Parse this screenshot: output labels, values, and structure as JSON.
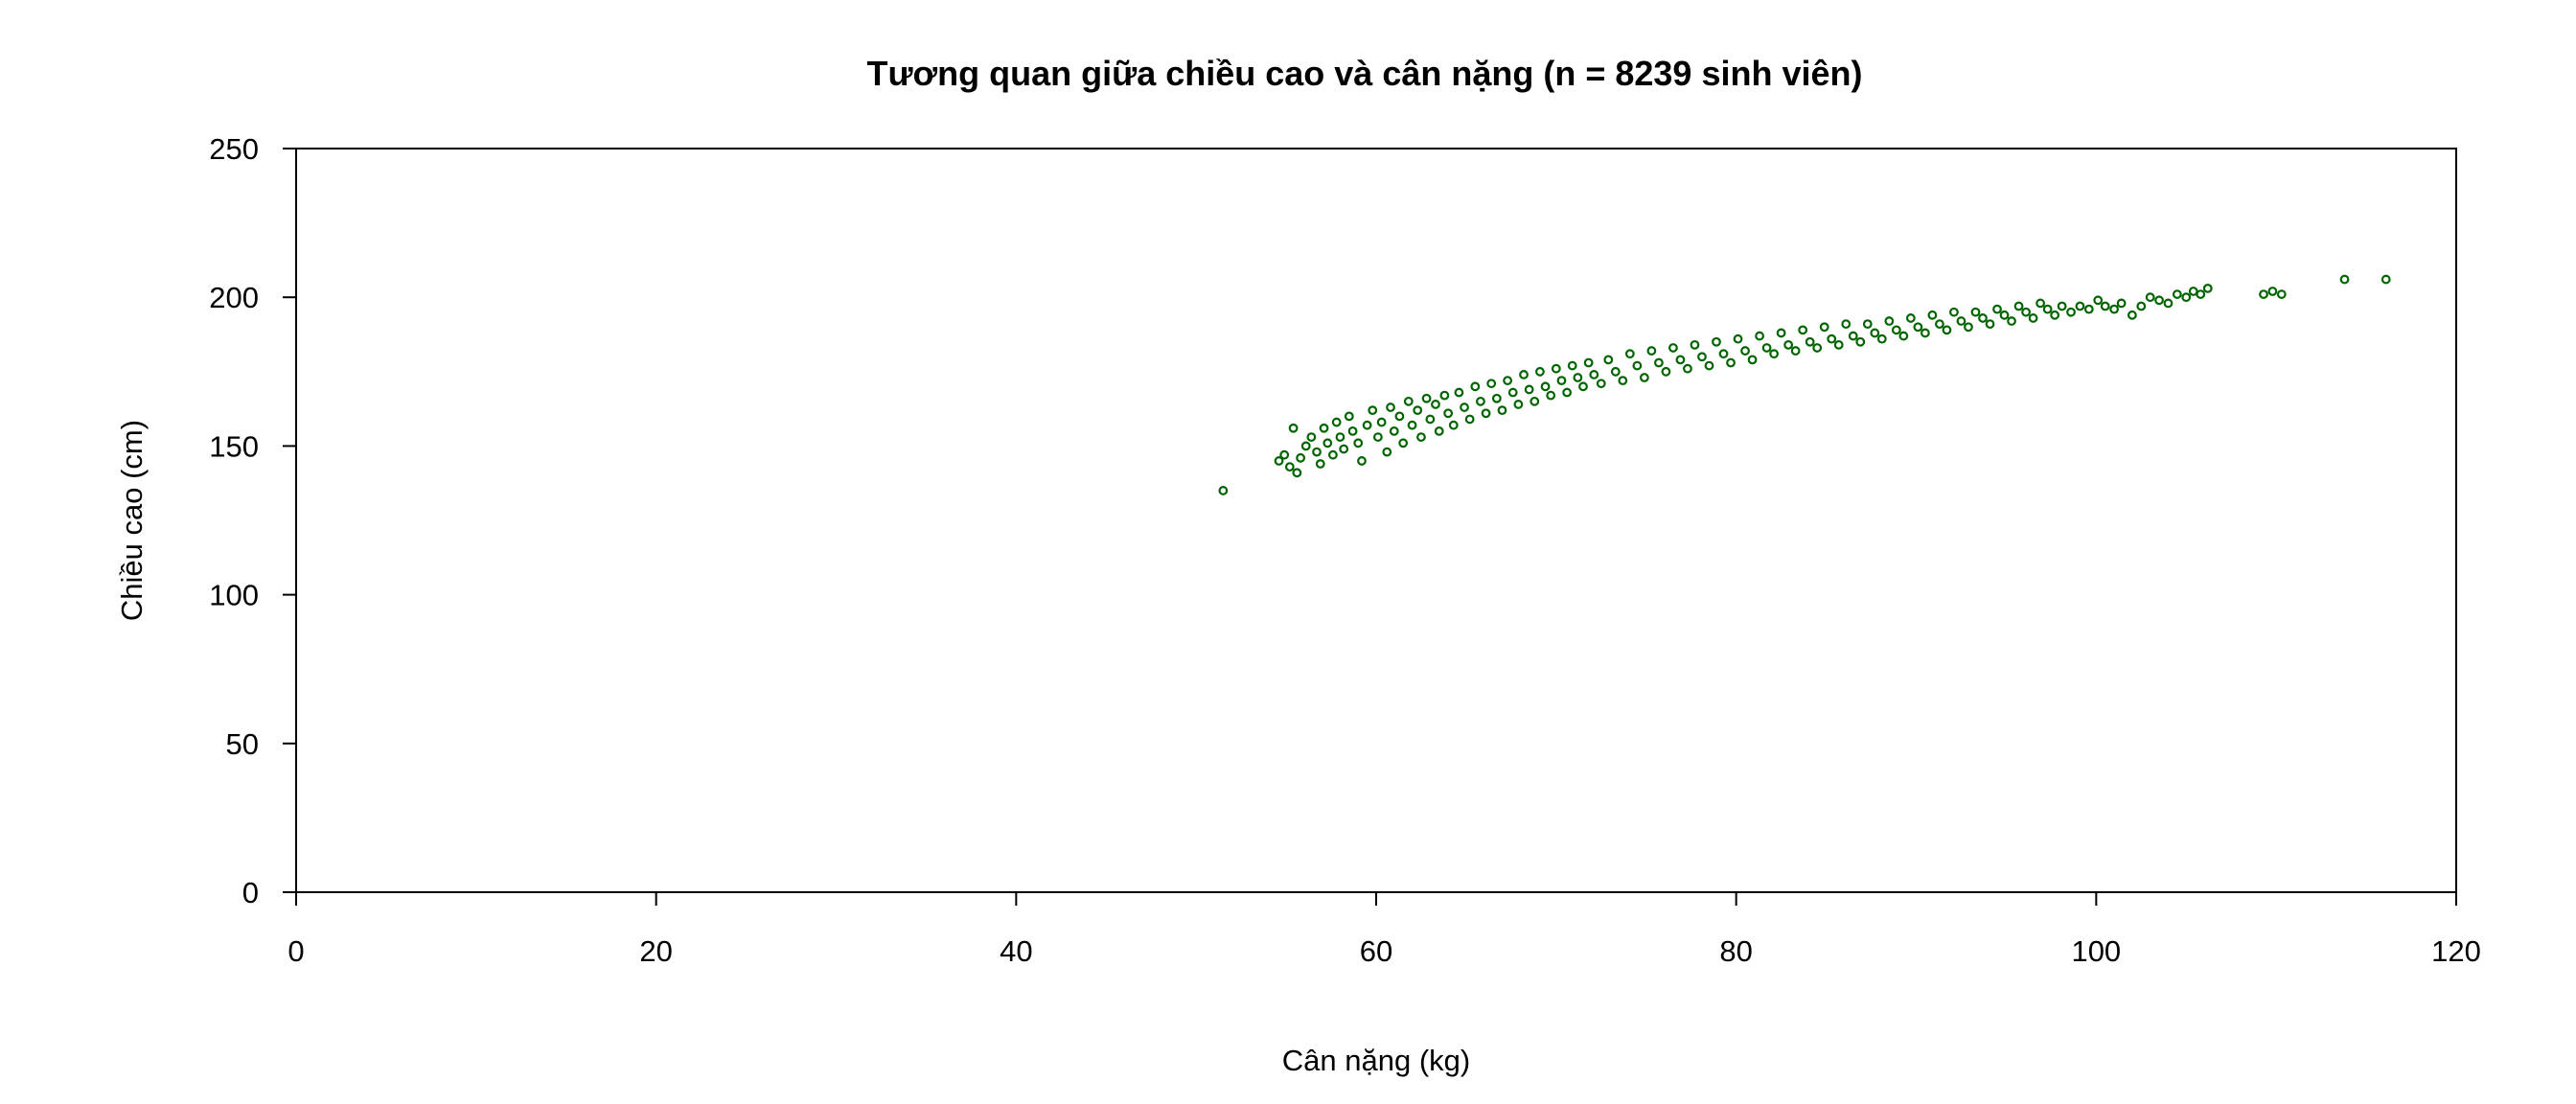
{
  "chart_data": {
    "type": "scatter",
    "title": "Tương quan giữa chiều cao và cân nặng (n = 8239 sinh viên)",
    "xlabel": "Cân nặng (kg)",
    "ylabel": "Chiều cao (cm)",
    "xlim": [
      0,
      120
    ],
    "ylim": [
      0,
      250
    ],
    "x_ticks": [
      0,
      20,
      40,
      60,
      80,
      100,
      120
    ],
    "y_ticks": [
      0,
      50,
      100,
      150,
      200,
      250
    ],
    "x_tick_labels": [
      "0",
      "20",
      "40",
      "60",
      "80",
      "100",
      "120"
    ],
    "y_tick_labels": [
      "0",
      "50",
      "100",
      "150",
      "200",
      "250"
    ],
    "grid": false,
    "legend": "none",
    "marker_color": "#006400",
    "series": [
      {
        "points": [
          [
            51.5,
            135
          ],
          [
            54.6,
            145
          ],
          [
            54.9,
            147
          ],
          [
            55.2,
            143
          ],
          [
            55.4,
            156
          ],
          [
            55.8,
            146
          ],
          [
            55.6,
            141
          ],
          [
            56.1,
            150
          ],
          [
            56.4,
            153
          ],
          [
            56.7,
            148
          ],
          [
            56.9,
            144
          ],
          [
            57.1,
            156
          ],
          [
            57.3,
            151
          ],
          [
            57.6,
            147
          ],
          [
            57.8,
            158
          ],
          [
            58.0,
            153
          ],
          [
            58.2,
            149
          ],
          [
            58.5,
            160
          ],
          [
            58.7,
            155
          ],
          [
            59.0,
            151
          ],
          [
            59.2,
            145
          ],
          [
            59.5,
            157
          ],
          [
            59.8,
            162
          ],
          [
            60.1,
            153
          ],
          [
            60.3,
            158
          ],
          [
            60.6,
            148
          ],
          [
            60.8,
            163
          ],
          [
            61.0,
            155
          ],
          [
            61.3,
            160
          ],
          [
            61.5,
            151
          ],
          [
            61.8,
            165
          ],
          [
            62.0,
            157
          ],
          [
            62.3,
            162
          ],
          [
            62.5,
            153
          ],
          [
            62.8,
            166
          ],
          [
            63.0,
            159
          ],
          [
            63.3,
            164
          ],
          [
            63.5,
            155
          ],
          [
            63.8,
            167
          ],
          [
            64.0,
            161
          ],
          [
            64.3,
            157
          ],
          [
            64.6,
            168
          ],
          [
            64.9,
            163
          ],
          [
            65.2,
            159
          ],
          [
            65.5,
            170
          ],
          [
            65.8,
            165
          ],
          [
            66.1,
            161
          ],
          [
            66.4,
            171
          ],
          [
            66.7,
            166
          ],
          [
            67.0,
            162
          ],
          [
            67.3,
            172
          ],
          [
            67.6,
            168
          ],
          [
            67.9,
            164
          ],
          [
            68.2,
            174
          ],
          [
            68.5,
            169
          ],
          [
            68.8,
            165
          ],
          [
            69.1,
            175
          ],
          [
            69.4,
            170
          ],
          [
            69.7,
            167
          ],
          [
            70.0,
            176
          ],
          [
            70.3,
            172
          ],
          [
            70.6,
            168
          ],
          [
            70.9,
            177
          ],
          [
            71.2,
            173
          ],
          [
            71.5,
            170
          ],
          [
            71.8,
            178
          ],
          [
            72.1,
            174
          ],
          [
            72.5,
            171
          ],
          [
            72.9,
            179
          ],
          [
            73.3,
            175
          ],
          [
            73.7,
            172
          ],
          [
            74.1,
            181
          ],
          [
            74.5,
            177
          ],
          [
            74.9,
            173
          ],
          [
            75.3,
            182
          ],
          [
            75.7,
            178
          ],
          [
            76.1,
            175
          ],
          [
            76.5,
            183
          ],
          [
            76.9,
            179
          ],
          [
            77.3,
            176
          ],
          [
            77.7,
            184
          ],
          [
            78.1,
            180
          ],
          [
            78.5,
            177
          ],
          [
            78.9,
            185
          ],
          [
            79.3,
            181
          ],
          [
            79.7,
            178
          ],
          [
            80.1,
            186
          ],
          [
            80.5,
            182
          ],
          [
            80.9,
            179
          ],
          [
            81.3,
            187
          ],
          [
            81.7,
            183
          ],
          [
            82.1,
            181
          ],
          [
            82.5,
            188
          ],
          [
            82.9,
            184
          ],
          [
            83.3,
            182
          ],
          [
            83.7,
            189
          ],
          [
            84.1,
            185
          ],
          [
            84.5,
            183
          ],
          [
            84.9,
            190
          ],
          [
            85.3,
            186
          ],
          [
            85.7,
            184
          ],
          [
            86.1,
            191
          ],
          [
            86.5,
            187
          ],
          [
            86.9,
            185
          ],
          [
            87.3,
            191
          ],
          [
            87.7,
            188
          ],
          [
            88.1,
            186
          ],
          [
            88.5,
            192
          ],
          [
            88.9,
            189
          ],
          [
            89.3,
            187
          ],
          [
            89.7,
            193
          ],
          [
            90.1,
            190
          ],
          [
            90.5,
            188
          ],
          [
            90.9,
            194
          ],
          [
            91.3,
            191
          ],
          [
            91.7,
            189
          ],
          [
            92.1,
            195
          ],
          [
            92.5,
            192
          ],
          [
            92.9,
            190
          ],
          [
            93.3,
            195
          ],
          [
            93.7,
            193
          ],
          [
            94.1,
            191
          ],
          [
            94.5,
            196
          ],
          [
            94.9,
            194
          ],
          [
            95.3,
            192
          ],
          [
            95.7,
            197
          ],
          [
            96.1,
            195
          ],
          [
            96.5,
            193
          ],
          [
            96.9,
            198
          ],
          [
            97.3,
            196
          ],
          [
            97.7,
            194
          ],
          [
            98.1,
            197
          ],
          [
            98.6,
            195
          ],
          [
            99.1,
            197
          ],
          [
            99.6,
            196
          ],
          [
            100.1,
            199
          ],
          [
            100.5,
            197
          ],
          [
            101.0,
            196
          ],
          [
            101.4,
            198
          ],
          [
            102.0,
            194
          ],
          [
            102.5,
            197
          ],
          [
            103.0,
            200
          ],
          [
            103.5,
            199
          ],
          [
            104.0,
            198
          ],
          [
            104.5,
            201
          ],
          [
            105.0,
            200
          ],
          [
            105.4,
            202
          ],
          [
            105.8,
            201
          ],
          [
            106.2,
            203
          ],
          [
            109.3,
            201
          ],
          [
            109.8,
            202
          ],
          [
            110.3,
            201
          ],
          [
            113.8,
            206
          ],
          [
            116.1,
            206
          ]
        ]
      }
    ]
  }
}
